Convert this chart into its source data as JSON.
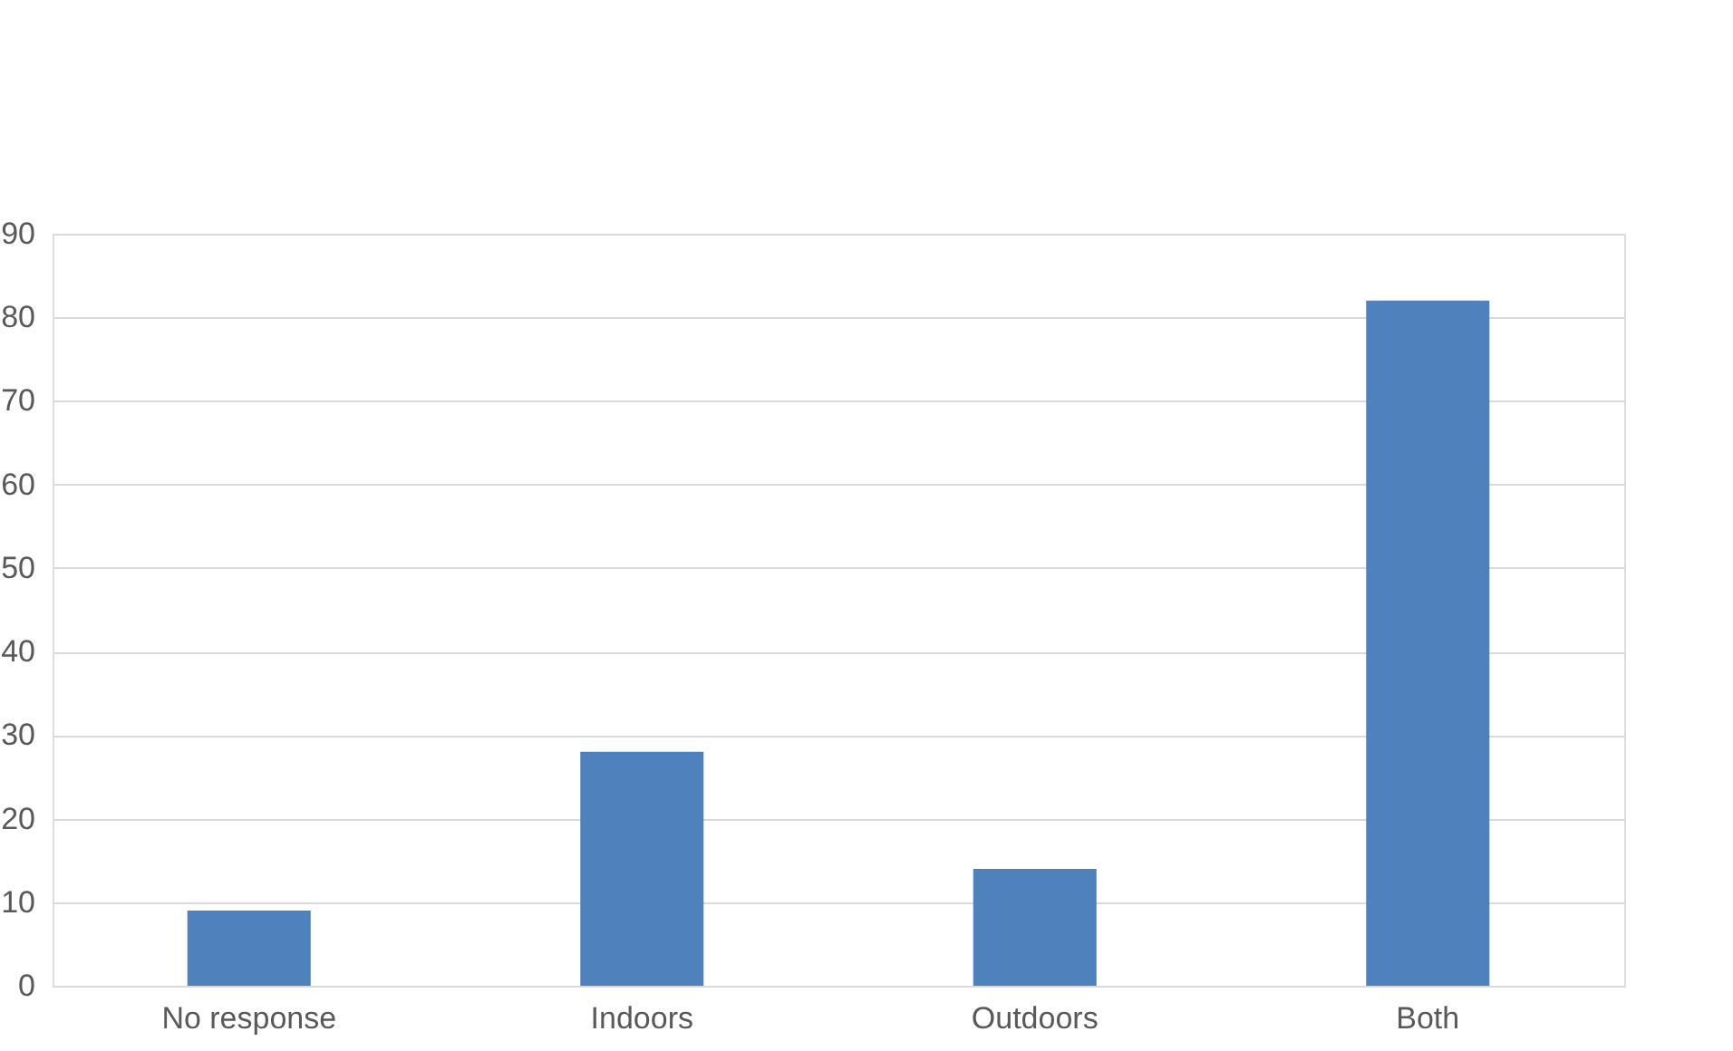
{
  "chart_data": {
    "type": "bar",
    "categories": [
      "No response",
      "Indoors",
      "Outdoors",
      "Both"
    ],
    "values": [
      9,
      28,
      14,
      82
    ],
    "color": "#4f81bd",
    "ylim": [
      0,
      90
    ],
    "yticks": [
      0,
      10,
      20,
      30,
      40,
      50,
      60,
      70,
      80,
      90
    ],
    "grid": "y"
  }
}
